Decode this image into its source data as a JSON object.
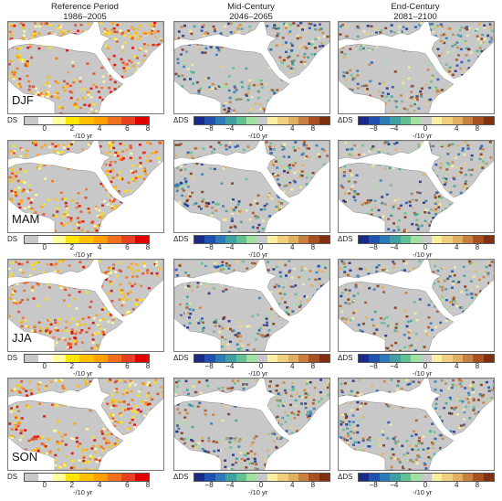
{
  "columns": [
    {
      "title_line1": "Reference Period",
      "title_line2": "1986–2005"
    },
    {
      "title_line1": "Mid-Century",
      "title_line2": "2046–2065"
    },
    {
      "title_line1": "End-Century",
      "title_line2": "2081–2100"
    }
  ],
  "seasons": [
    "DJF",
    "MAM",
    "JJA",
    "SON"
  ],
  "legend_reference": {
    "label": "DS",
    "ticks": [
      "0",
      "2",
      "4",
      "6",
      "8"
    ],
    "unit": "-/10 yr",
    "colors": [
      "#c8c8c8",
      "#ffffff",
      "#ffffa0",
      "#ffe600",
      "#ffc000",
      "#ffa000",
      "#f07020",
      "#e84020",
      "#e00000"
    ]
  },
  "legend_change": {
    "label": "ΔDS",
    "ticks": [
      "−8",
      "−4",
      "0",
      "4",
      "8"
    ],
    "unit": "-/10 yr",
    "colors": [
      "#1a2a8a",
      "#2050b0",
      "#2c7bb6",
      "#40a0a0",
      "#60c090",
      "#a0e0a0",
      "#c8c8c8",
      "#f8f0a0",
      "#f0d080",
      "#e0b060",
      "#c88040",
      "#a85020",
      "#803010"
    ]
  },
  "map_colors": {
    "land": "#c8c8c8",
    "ocean": "#ffffff",
    "coast": "#888888"
  }
}
